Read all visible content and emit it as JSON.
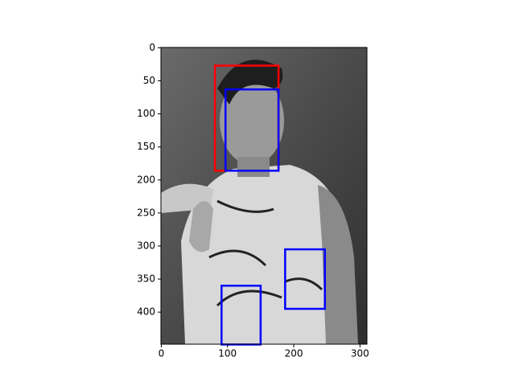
{
  "chart_data": {
    "type": "image",
    "xlim": [
      -0.5,
      310.5
    ],
    "ylim": [
      448.5,
      -0.5
    ],
    "xticks": [
      0,
      100,
      200,
      300
    ],
    "yticks": [
      0,
      50,
      100,
      150,
      200,
      250,
      300,
      350,
      400
    ],
    "boxes": [
      {
        "color": "#ff0000",
        "x": [
          81,
          177
        ],
        "y": [
          27,
          186
        ]
      },
      {
        "color": "#0000ff",
        "x": [
          97,
          177
        ],
        "y": [
          63,
          186
        ]
      },
      {
        "color": "#0000ff",
        "x": [
          187,
          247
        ],
        "y": [
          305,
          395
        ]
      },
      {
        "color": "#0000ff",
        "x": [
          91,
          150
        ],
        "y": [
          360,
          449
        ]
      }
    ]
  }
}
